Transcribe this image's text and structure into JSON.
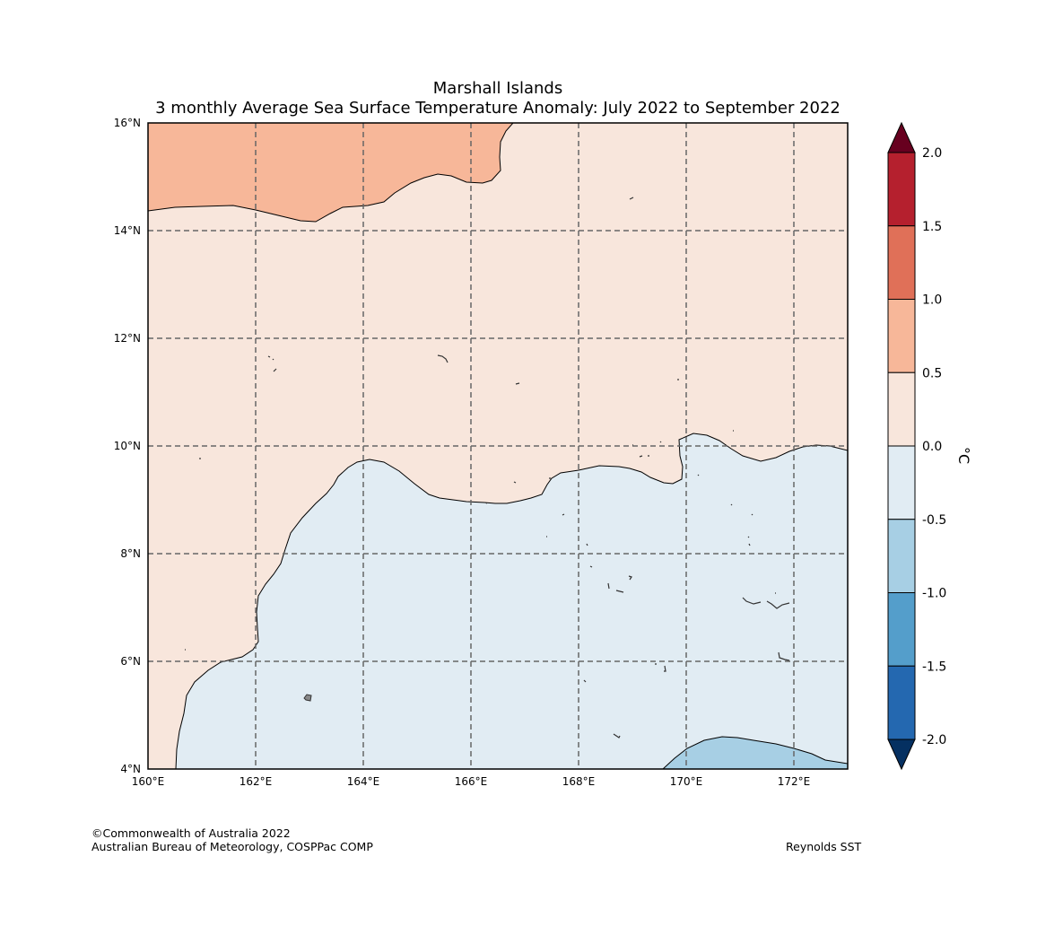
{
  "title": {
    "line1": "Marshall Islands",
    "line2": "3 monthly Average Sea Surface Temperature Anomaly: July 2022 to September 2022"
  },
  "map": {
    "lon_range": [
      160,
      173
    ],
    "lat_range": [
      4,
      16
    ],
    "lon_ticks": [
      {
        "value": 160,
        "label": "160°E"
      },
      {
        "value": 162,
        "label": "162°E"
      },
      {
        "value": 164,
        "label": "164°E"
      },
      {
        "value": 166,
        "label": "166°E"
      },
      {
        "value": 168,
        "label": "168°E"
      },
      {
        "value": 170,
        "label": "170°E"
      },
      {
        "value": 172,
        "label": "172°E"
      }
    ],
    "lat_ticks": [
      {
        "value": 4,
        "label": "4°N"
      },
      {
        "value": 6,
        "label": "6°N"
      },
      {
        "value": 8,
        "label": "8°N"
      },
      {
        "value": 10,
        "label": "10°N"
      },
      {
        "value": 12,
        "label": "12°N"
      },
      {
        "value": 14,
        "label": "14°N"
      },
      {
        "value": 16,
        "label": "16°N"
      }
    ],
    "gridlines": true,
    "region_colors": {
      "anomaly_0.5_to_1.0": "#f7b799",
      "anomaly_0.0_to_0.5": "#f8e6dc",
      "anomaly_-0.5_to_0.0": "#e1ecf3",
      "anomaly_-1.0_to_-0.5": "#a7cfe4"
    }
  },
  "colorbar": {
    "unit": "°C",
    "levels": [
      {
        "value": 2.0,
        "label": "2.0"
      },
      {
        "value": 1.5,
        "label": "1.5"
      },
      {
        "value": 1.0,
        "label": "1.0"
      },
      {
        "value": 0.5,
        "label": "0.5"
      },
      {
        "value": 0.0,
        "label": "0.0"
      },
      {
        "value": -0.5,
        "label": "-0.5"
      },
      {
        "value": -1.0,
        "label": "-1.0"
      },
      {
        "value": -1.5,
        "label": "-1.5"
      },
      {
        "value": -2.0,
        "label": "-2.0"
      }
    ],
    "band_colors": [
      "#b5202e",
      "#e07058",
      "#f7b799",
      "#f8e6dc",
      "#e1ecf3",
      "#a7cfe4",
      "#549ecb",
      "#2468b0"
    ],
    "over_color": "#67001f",
    "under_color": "#053061"
  },
  "footer": {
    "credit_line1": "©Commonwealth of Australia 2022",
    "credit_line2": "Australian Bureau of Meteorology, COSPPac COMP",
    "source": "Reynolds SST"
  }
}
